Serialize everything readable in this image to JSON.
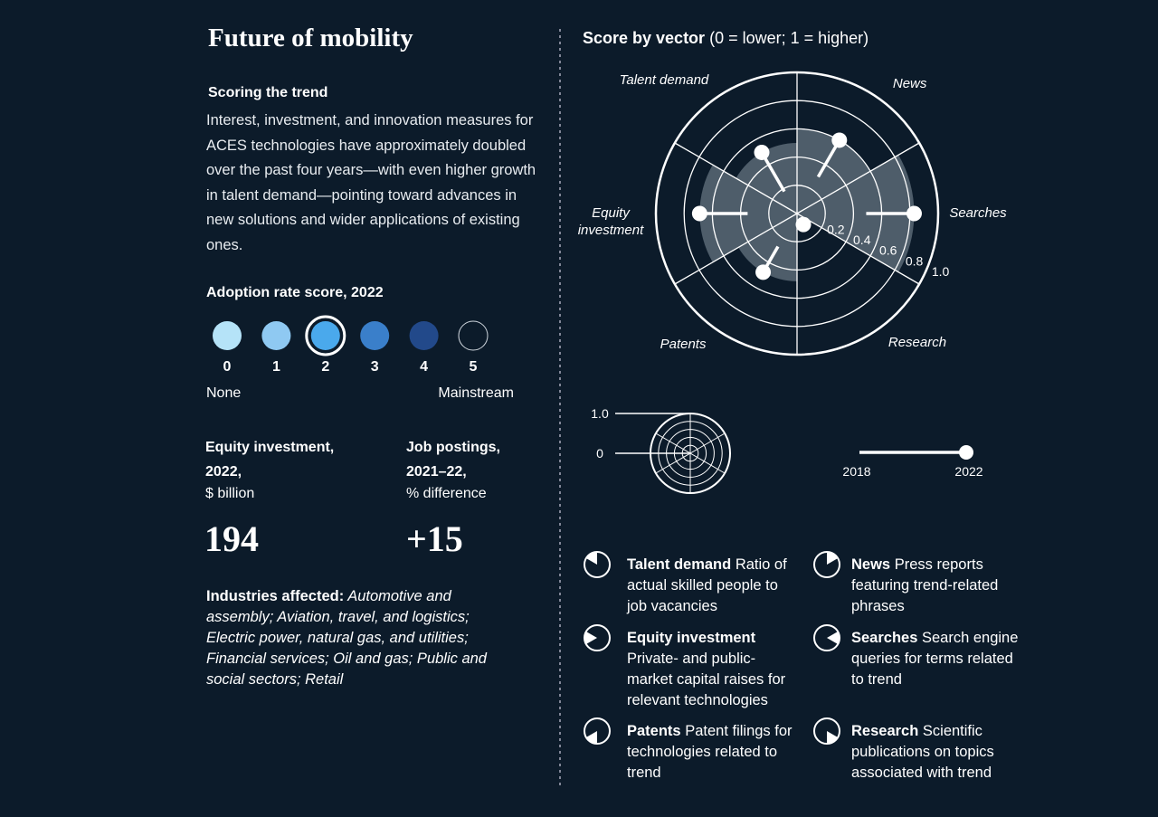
{
  "title": "Future of mobility",
  "scoring": {
    "heading": "Scoring the trend",
    "text": "Interest, investment, and innovation measures for ACES technologies have approximately doubled over the past four years—with even higher growth in talent demand—pointing toward advances in new solutions and wider applications of existing ones."
  },
  "adoption": {
    "heading": "Adoption rate score, 2022",
    "levels": [
      "0",
      "1",
      "2",
      "3",
      "4",
      "5"
    ],
    "colors": [
      "#b5e3f8",
      "#8fc9f2",
      "#4aa9ec",
      "#3a7fca",
      "#22498a",
      "#0c1b2a"
    ],
    "selected": 2,
    "low_label": "None",
    "high_label": "Mainstream"
  },
  "metrics": [
    {
      "heading": "Equity investment, 2022,",
      "unit": "$ billion",
      "value": "194"
    },
    {
      "heading": "Job postings, 2021–22,",
      "unit": "% difference",
      "value": "+15"
    }
  ],
  "industries": {
    "label": "Industries affected:",
    "text": "Automotive and assembly; Aviation, travel, and logistics; Electric power, natural gas, and utilities; Financial services; Oil and gas; Public and social sectors; Retail"
  },
  "chart_data": {
    "type": "radar",
    "title": "Score by vector",
    "subtitle": "(0 = lower; 1 = higher)",
    "categories": [
      "Talent demand",
      "News",
      "Searches",
      "Research",
      "Patents",
      "Equity investment"
    ],
    "series": [
      {
        "name": "2018",
        "values": [
          0.18,
          0.3,
          0.49,
          0.09,
          0.27,
          0.35
        ]
      },
      {
        "name": "2022",
        "values": [
          0.5,
          0.6,
          0.83,
          0.09,
          0.48,
          0.69
        ]
      }
    ],
    "rlim": [
      0,
      1
    ],
    "rticks": [
      0.2,
      0.4,
      0.6,
      0.8,
      {
        "value": 1,
        "label": "1.0"
      }
    ],
    "key_ticks": [
      {
        "value": 1,
        "label": "1.0"
      },
      0
    ],
    "shade_color": "#4e5d6a"
  },
  "definitions": [
    {
      "term": "Talent demand",
      "text": "Ratio of actual skilled people to job vacancies"
    },
    {
      "term": "News",
      "text": "Press reports featuring trend-related phrases"
    },
    {
      "term": "Equity investment",
      "text": "Private- and public-market capital raises for relevant technologies"
    },
    {
      "term": "Searches",
      "text": "Search engine queries for terms related to trend"
    },
    {
      "term": "Patents",
      "text": "Patent filings for technologies related to trend"
    },
    {
      "term": "Research",
      "text": "Scientific publications on topics associated with trend"
    }
  ]
}
